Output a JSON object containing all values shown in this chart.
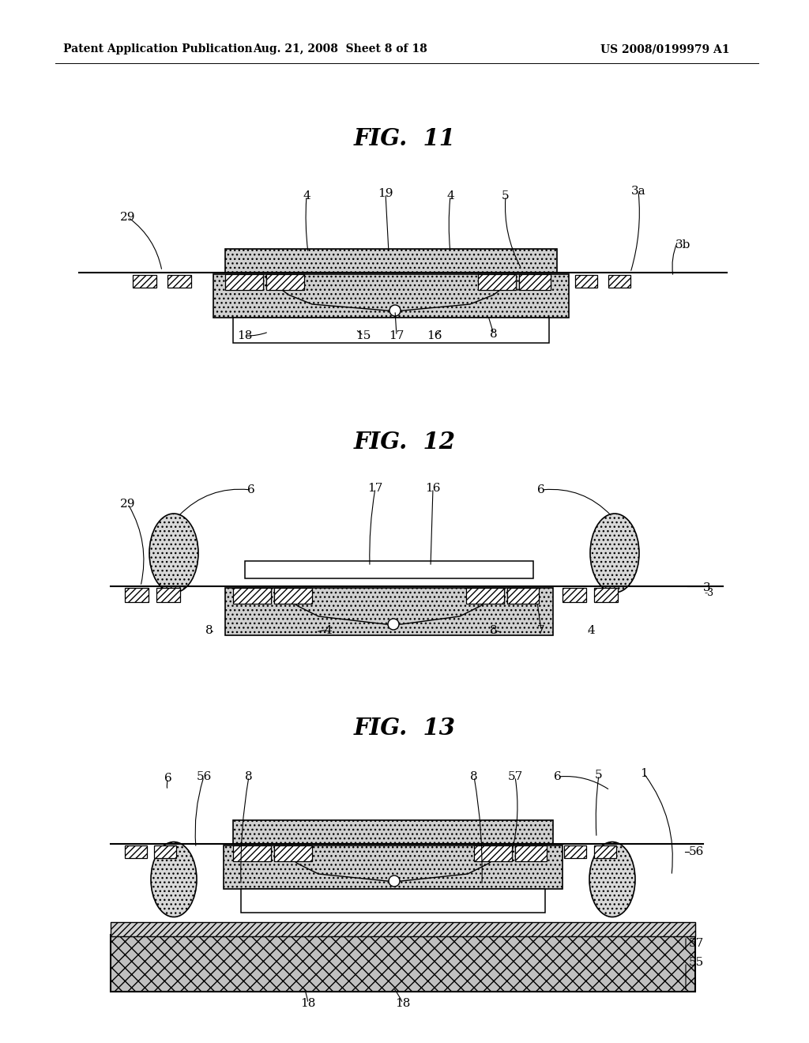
{
  "header_left": "Patent Application Publication",
  "header_center": "Aug. 21, 2008  Sheet 8 of 18",
  "header_right": "US 2008/0199979 A1",
  "fig11_title": "FIG.  11",
  "fig12_title": "FIG.  12",
  "fig13_title": "FIG.  13",
  "bg_color": "#ffffff",
  "lc": "#000000",
  "dot_fill": "#d8d8d8",
  "light_dot": "#e8e8e8"
}
